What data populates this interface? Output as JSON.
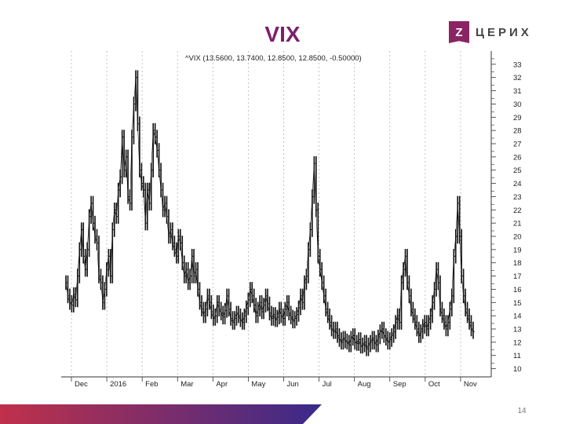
{
  "slide": {
    "title": "VIX",
    "page_number": "14"
  },
  "logo": {
    "mark": "Z",
    "text": "ЦЕРИХ",
    "icon": "zerich-logo-icon",
    "color": "#8a2462"
  },
  "colors": {
    "title": "#7b1f6e",
    "gradient_start": "#c0304a",
    "gradient_end": "#3a2a8a"
  },
  "chart_data": {
    "type": "line",
    "legend": "^VIX (13.5600, 13.7400, 12.8500, 12.8500, -0.50000)",
    "x_tick_labels": [
      "Dec",
      "2016",
      "Feb",
      "Mar",
      "Apr",
      "May",
      "Jun",
      "Jul",
      "Aug",
      "Sep",
      "Oct",
      "Nov"
    ],
    "y_ticks": [
      10,
      11,
      12,
      13,
      14,
      15,
      16,
      17,
      18,
      19,
      20,
      21,
      22,
      23,
      24,
      25,
      26,
      27,
      28,
      29,
      30,
      31,
      32,
      33
    ],
    "ylim": [
      9.5,
      34
    ],
    "y_axis_side": "right",
    "grid": "vertical dotted at month boundaries",
    "series": [
      {
        "values": [
          16.5,
          15.5,
          15.0,
          14.8,
          15.6,
          15.2,
          17.0,
          19.0,
          20.5,
          18.5,
          17.5,
          19.0,
          21.5,
          22.5,
          21.0,
          20.0,
          19.5,
          17.0,
          16.5,
          15.0,
          16.0,
          17.5,
          18.5,
          17.0,
          20.5,
          22.0,
          21.5,
          23.5,
          24.5,
          27.5,
          25.0,
          26.0,
          23.0,
          22.5,
          27.5,
          30.0,
          32.0,
          28.5,
          25.0,
          24.0,
          23.5,
          21.0,
          23.5,
          22.5,
          25.0,
          28.0,
          27.5,
          26.5,
          25.0,
          23.5,
          22.0,
          22.5,
          21.5,
          20.0,
          20.5,
          19.5,
          19.0,
          18.5,
          20.0,
          19.5,
          18.0,
          17.0,
          17.5,
          16.5,
          17.0,
          18.5,
          17.0,
          17.5,
          16.0,
          15.0,
          14.5,
          14.0,
          14.5,
          15.5,
          15.0,
          14.3,
          13.8,
          14.0,
          15.0,
          14.5,
          14.2,
          13.9,
          14.4,
          15.5,
          14.5,
          13.8,
          13.5,
          13.8,
          14.2,
          14.0,
          13.7,
          13.5,
          14.0,
          14.6,
          15.2,
          16.0,
          15.5,
          14.8,
          14.0,
          14.5,
          15.0,
          14.3,
          14.8,
          15.5,
          14.9,
          14.2,
          13.8,
          14.1,
          13.7,
          13.9,
          14.5,
          14.0,
          13.8,
          14.5,
          15.0,
          14.2,
          13.9,
          13.6,
          13.8,
          14.1,
          14.6,
          15.5,
          15.0,
          16.5,
          17.0,
          19.0,
          20.5,
          23.0,
          25.5,
          22.0,
          18.5,
          17.5,
          16.5,
          15.5,
          14.5,
          14.0,
          13.5,
          13.0,
          12.8,
          13.0,
          12.5,
          12.2,
          12.0,
          12.3,
          12.1,
          12.0,
          11.8,
          12.3,
          12.5,
          12.0,
          11.9,
          12.2,
          11.7,
          11.8,
          12.0,
          11.5,
          11.8,
          12.0,
          12.3,
          12.0,
          11.8,
          12.4,
          12.8,
          13.0,
          12.5,
          12.3,
          12.0,
          12.2,
          12.5,
          12.8,
          13.5,
          14.0,
          13.5,
          16.5,
          17.5,
          18.5,
          16.5,
          15.5,
          14.5,
          14.0,
          13.5,
          13.0,
          12.5,
          12.8,
          13.2,
          13.5,
          13.0,
          13.5,
          14.0,
          15.0,
          16.0,
          17.5,
          16.5,
          14.5,
          14.0,
          13.5,
          13.0,
          13.5,
          14.5,
          15.5,
          18.5,
          20.0,
          22.5,
          20.0,
          17.0,
          15.5,
          14.5,
          14.0,
          13.5,
          13.0,
          12.8
        ]
      }
    ]
  }
}
